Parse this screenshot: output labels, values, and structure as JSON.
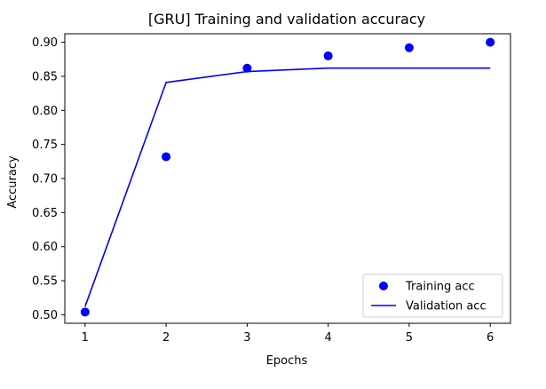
{
  "chart_data": {
    "type": "line",
    "title": "[GRU] Training and validation accuracy",
    "xlabel": "Epochs",
    "ylabel": "Accuracy",
    "xlim": [
      0.75,
      6.25
    ],
    "ylim": [
      0.4875,
      0.9125
    ],
    "xticks": [
      1,
      2,
      3,
      4,
      5,
      6
    ],
    "yticks": [
      0.5,
      0.55,
      0.6,
      0.65,
      0.7,
      0.75,
      0.8,
      0.85,
      0.9
    ],
    "ytick_labels": [
      "0.50",
      "0.55",
      "0.60",
      "0.65",
      "0.70",
      "0.75",
      "0.80",
      "0.85",
      "0.90"
    ],
    "grid": false,
    "legend_position": "bottom-right",
    "series": [
      {
        "name": "Training acc",
        "style": "points",
        "color": "#0000ff",
        "x": [
          1,
          2,
          3,
          4,
          5,
          6
        ],
        "y": [
          0.504,
          0.732,
          0.862,
          0.88,
          0.892,
          0.9
        ]
      },
      {
        "name": "Validation acc",
        "style": "line",
        "color": "#0000ff",
        "x": [
          1,
          2,
          3,
          4,
          5,
          6
        ],
        "y": [
          0.512,
          0.841,
          0.857,
          0.862,
          0.862,
          0.862
        ]
      }
    ]
  }
}
